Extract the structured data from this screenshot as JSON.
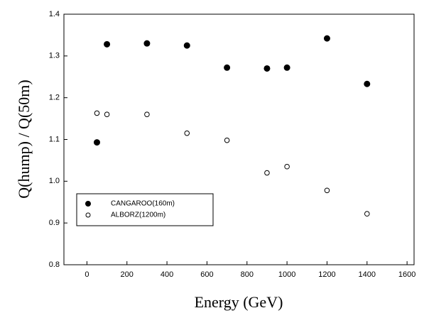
{
  "chart_data": {
    "type": "scatter",
    "x_label": "Energy (GeV)",
    "y_label": "Q(hump) / Q(50m)",
    "xlim": [
      -115,
      1635
    ],
    "ylim": [
      0.8,
      1.4
    ],
    "xticks": [
      0,
      200,
      400,
      600,
      800,
      1000,
      1200,
      1400,
      1600
    ],
    "yticks": [
      0.8,
      0.9,
      {
        "value": 1,
        "label": "1.0"
      },
      1.1,
      1.2,
      1.3,
      1.4
    ],
    "series": [
      {
        "name": "CANGAROO(160m)",
        "color": "#000000",
        "marker": "filled",
        "x": [
          50,
          100,
          300,
          500,
          700,
          900,
          1000,
          1200,
          1400
        ],
        "values": [
          1.093,
          1.328,
          1.33,
          1.325,
          1.272,
          1.27,
          1.272,
          1.342,
          1.233
        ]
      },
      {
        "name": "ALBORZ(1200m)",
        "color": "#000000",
        "marker": "open",
        "x": [
          50,
          100,
          300,
          500,
          700,
          900,
          1000,
          1200,
          1400
        ],
        "values": [
          1.163,
          1.16,
          1.16,
          1.115,
          1.098,
          1.02,
          1.035,
          0.978,
          0.922
        ]
      }
    ]
  }
}
